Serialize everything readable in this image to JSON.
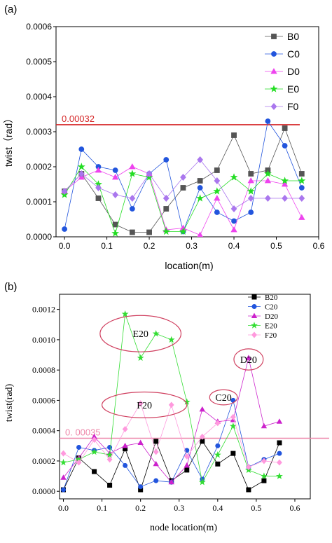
{
  "chart_data": [
    {
      "panel_label": "(a)",
      "type": "line",
      "xlabel": "location(m)",
      "ylabel": "twist（rad）",
      "xlim": [
        -0.02,
        0.6
      ],
      "ylim": [
        0,
        0.0006
      ],
      "xticks": [
        0.0,
        0.1,
        0.2,
        0.3,
        0.4,
        0.5,
        0.6
      ],
      "xtick_labels": [
        "0.0",
        "0.1",
        "0.2",
        "0.3",
        "0.4",
        "0.5",
        "0.6"
      ],
      "yticks": [
        0,
        0.0001,
        0.0002,
        0.0003,
        0.0004,
        0.0005,
        0.0006
      ],
      "ytick_labels": [
        "0.0000",
        "0.0001",
        "0.0002",
        "0.0003",
        "0.0004",
        "0.0005",
        "0.0006"
      ],
      "legend_position": "top-right",
      "threshold": {
        "value": 0.00032,
        "label": "0.00032",
        "color": "#d62728"
      },
      "x": [
        0.0,
        0.04,
        0.08,
        0.12,
        0.16,
        0.2,
        0.24,
        0.28,
        0.32,
        0.36,
        0.4,
        0.44,
        0.48,
        0.52,
        0.56
      ],
      "series": [
        {
          "name": "B0",
          "marker": "square",
          "color": "#555555",
          "values": [
            0.00013,
            0.00018,
            0.00011,
            3.5e-05,
            1.3e-05,
            1.3e-05,
            8e-05,
            0.00014,
            0.00016,
            0.00019,
            0.00029,
            0.00018,
            0.00019,
            0.00031,
            0.00018
          ]
        },
        {
          "name": "C0",
          "marker": "circle",
          "color": "#2255dd",
          "values": [
            2.2e-05,
            0.00025,
            0.0002,
            0.00019,
            8e-05,
            0.00018,
            0.00022,
            1.5e-05,
            0.00014,
            7e-05,
            4.5e-05,
            7e-05,
            0.00033,
            0.00026,
            0.00014
          ]
        },
        {
          "name": "D0",
          "marker": "triangle",
          "color": "#ee44ee",
          "values": [
            0.00013,
            0.00017,
            0.00019,
            0.00017,
            0.0002,
            0.00018,
            2e-05,
            2.5e-05,
            5e-06,
            0.00011,
            2e-05,
            0.00016,
            0.00016,
            0.00015,
            5.5e-05
          ]
        },
        {
          "name": "E0",
          "marker": "star",
          "color": "#22dd22",
          "values": [
            0.00012,
            0.0002,
            0.00015,
            1e-05,
            0.00018,
            0.00017,
            1.5e-05,
            1.5e-05,
            0.00011,
            0.00013,
            0.00017,
            0.00013,
            0.00018,
            0.00016,
            0.00016
          ]
        },
        {
          "name": "F0",
          "marker": "diamond",
          "color": "#aa77ee",
          "values": [
            0.00013,
            0.00018,
            0.00014,
            0.00012,
            0.00011,
            0.00018,
            0.00011,
            0.00017,
            0.00022,
            0.00016,
            8e-05,
            0.00011,
            0.00011,
            0.00011,
            0.00011
          ]
        }
      ]
    },
    {
      "panel_label": "(b)",
      "type": "line",
      "xlabel": "node location(m)",
      "ylabel": "twist(rad)",
      "xlim": [
        -0.01,
        0.64
      ],
      "ylim": [
        -5e-05,
        0.0013
      ],
      "xticks": [
        0.0,
        0.1,
        0.2,
        0.3,
        0.4,
        0.5,
        0.6
      ],
      "xtick_labels": [
        "0.0",
        "0.1",
        "0.2",
        "0.3",
        "0.4",
        "0.5",
        "0.6"
      ],
      "yticks": [
        0,
        0.0002,
        0.0004,
        0.0006,
        0.0008,
        0.001,
        0.0012
      ],
      "ytick_labels": [
        "0.0000",
        "0.0002",
        "0.0004",
        "0.0006",
        "0.0008",
        "0.0010",
        "0.0012"
      ],
      "legend_position": "top-right",
      "threshold": {
        "value": 0.00035,
        "label": "0. 00035",
        "color": "#ee88aa"
      },
      "annotations": [
        {
          "label": "E20",
          "x": 0.2,
          "y": 0.00104,
          "rx": 0.105,
          "ry": 0.00012
        },
        {
          "label": "F20",
          "x": 0.21,
          "y": 0.00057,
          "rx": 0.11,
          "ry": 8.5e-05
        },
        {
          "label": "D20",
          "x": 0.48,
          "y": 0.00087,
          "rx": 0.038,
          "ry": 7e-05
        },
        {
          "label": "C20",
          "x": 0.415,
          "y": 0.00062,
          "rx": 0.036,
          "ry": 5e-05
        }
      ],
      "x": [
        0.0,
        0.04,
        0.08,
        0.12,
        0.16,
        0.2,
        0.24,
        0.28,
        0.32,
        0.36,
        0.4,
        0.44,
        0.48,
        0.52,
        0.56
      ],
      "series": [
        {
          "name": "B20",
          "marker": "square",
          "color": "#000000",
          "values": [
            1e-05,
            0.00022,
            0.00013,
            4e-05,
            0.00028,
            1e-05,
            0.00033,
            7e-05,
            0.00014,
            0.00033,
            0.00018,
            0.00025,
            1e-05,
            7e-05,
            0.00032
          ]
        },
        {
          "name": "C20",
          "marker": "circle",
          "color": "#2255dd",
          "values": [
            1e-05,
            0.00029,
            0.00027,
            0.00029,
            0.00017,
            3e-05,
            7e-05,
            6e-05,
            0.00027,
            8e-05,
            0.0003,
            0.0006,
            0.00016,
            0.00021,
            0.00025
          ]
        },
        {
          "name": "D20",
          "marker": "triangle",
          "color": "#cc22cc",
          "values": [
            9e-05,
            0.00022,
            0.00036,
            0.00025,
            0.0003,
            0.00032,
            0.00018,
            6e-05,
            0.00017,
            0.00054,
            0.00046,
            0.00047,
            0.00088,
            0.00043,
            0.00046
          ]
        },
        {
          "name": "E20",
          "marker": "star",
          "color": "#33dd33",
          "values": [
            0.00019,
            0.00021,
            0.00026,
            0.00024,
            0.00117,
            0.00088,
            0.00104,
            0.001,
            0.00059,
            6e-05,
            0.00024,
            0.00043,
            0.00014,
            0.0001,
            0.0001
          ]
        },
        {
          "name": "F20",
          "marker": "diamond",
          "color": "#ff99dd",
          "values": [
            0.00025,
            0.00019,
            0.00034,
            0.00021,
            0.00041,
            0.00058,
            0.00026,
            0.00057,
            0.00023,
            0.00036,
            0.00045,
            0.00049,
            0.00016,
            0.0002,
            0.00019
          ]
        }
      ]
    }
  ]
}
